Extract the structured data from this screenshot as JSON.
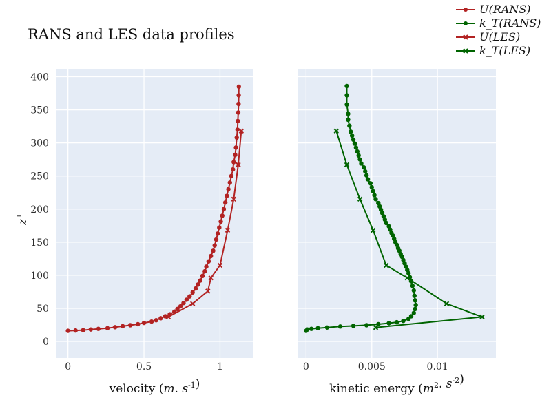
{
  "chart_data": {
    "title": "RANS and LES data profiles",
    "type": "line",
    "legend": {
      "placement": "top-right",
      "entries": [
        "U(RANS)",
        "k_T(RANS)",
        "U(LES)",
        "k_T(LES)"
      ]
    },
    "panels": [
      {
        "name": "velocity",
        "xlabel": "velocity (m.s^-1)",
        "ylabel": "z^+",
        "xlim": [
          -0.08,
          1.22
        ],
        "ylim": [
          -25,
          412
        ],
        "xticks": [
          0,
          0.5,
          1
        ],
        "xtick_labels": [
          "0",
          "0.5",
          "1"
        ],
        "yticks": [
          0,
          50,
          100,
          150,
          200,
          250,
          300,
          350,
          400
        ],
        "ytick_labels": [
          "0",
          "50",
          "100",
          "150",
          "200",
          "250",
          "300",
          "350",
          "400"
        ],
        "grid": true,
        "series": [
          {
            "name": "U(RANS)",
            "color": "#b22222",
            "marker": "circle",
            "x": [
              0.0,
              0.05,
              0.1,
              0.15,
              0.2,
              0.26,
              0.31,
              0.36,
              0.41,
              0.46,
              0.5,
              0.55,
              0.58,
              0.61,
              0.64,
              0.67,
              0.7,
              0.72,
              0.74,
              0.76,
              0.78,
              0.8,
              0.82,
              0.84,
              0.855,
              0.87,
              0.885,
              0.9,
              0.91,
              0.925,
              0.94,
              0.955,
              0.965,
              0.975,
              0.985,
              0.995,
              1.005,
              1.015,
              1.025,
              1.035,
              1.045,
              1.055,
              1.065,
              1.075,
              1.085,
              1.09,
              1.1,
              1.105,
              1.11,
              1.115,
              1.117,
              1.12,
              1.122,
              1.123,
              1.124
            ],
            "y": [
              16,
              16.5,
              17,
              18,
              19,
              20,
              21.5,
              23,
              24.5,
              26,
              28,
              30,
              32,
              35,
              38,
              41,
              45,
              49,
              53,
              58,
              63,
              68,
              74,
              80,
              86,
              92,
              99,
              106,
              113,
              121,
              129,
              137,
              145,
              154,
              163,
              172,
              181,
              190,
              200,
              210,
              220,
              230,
              240,
              250,
              260,
              271,
              282,
              293,
              308,
              320,
              333,
              346,
              359,
              372,
              385
            ]
          },
          {
            "name": "U(LES)",
            "color": "#b22222",
            "marker": "x",
            "x": [
              0.66,
              0.82,
              0.92,
              0.94,
              1.0,
              1.05,
              1.09,
              1.12,
              1.14
            ],
            "y": [
              37,
              57,
              76,
              96,
              115,
              168,
              215,
              267,
              318
            ]
          }
        ]
      },
      {
        "name": "kinetic energy",
        "xlabel": "kinetic energy (m^2.s^-2)",
        "xlim": [
          -0.00065,
          0.01445
        ],
        "ylim": [
          -25,
          412
        ],
        "xticks": [
          0,
          0.005,
          0.01
        ],
        "xtick_labels": [
          "0",
          "0.005",
          "0.01"
        ],
        "yticks": [
          0,
          50,
          100,
          150,
          200,
          250,
          300,
          350,
          400
        ],
        "grid": true,
        "series": [
          {
            "name": "k_T(RANS)",
            "color": "#006400",
            "marker": "circle",
            "x": [
              0.0,
              0.0001,
              0.0004,
              0.0009,
              0.0016,
              0.0026,
              0.0036,
              0.0046,
              0.0055,
              0.0063,
              0.0069,
              0.0074,
              0.0078,
              0.008,
              0.0082,
              0.0083,
              0.00835,
              0.0083,
              0.00825,
              0.0082,
              0.0081,
              0.008,
              0.0079,
              0.0078,
              0.0077,
              0.0076,
              0.0075,
              0.0074,
              0.0073,
              0.0072,
              0.0071,
              0.007,
              0.0069,
              0.0068,
              0.0067,
              0.0066,
              0.0065,
              0.0064,
              0.0063,
              0.0061,
              0.006,
              0.0059,
              0.0058,
              0.0057,
              0.0056,
              0.0055,
              0.0053,
              0.0052,
              0.0051,
              0.005,
              0.0049,
              0.0047,
              0.0046,
              0.0045,
              0.0044,
              0.0042,
              0.0041,
              0.004,
              0.0039,
              0.0038,
              0.0037,
              0.0036,
              0.0035,
              0.0034,
              0.0033,
              0.0032,
              0.0032,
              0.0031,
              0.0031,
              0.0031
            ],
            "y": [
              16,
              18,
              19,
              20,
              21,
              22.5,
              23.5,
              24.5,
              26,
              27.5,
              29,
              31,
              34,
              38,
              43,
              49,
              55,
              62,
              69,
              77,
              84,
              91,
              97,
              103,
              108,
              113,
              118,
              123,
              128,
              132,
              137,
              141,
              146,
              150,
              155,
              160,
              164,
              169,
              174,
              179,
              184,
              189,
              194,
              199,
              204,
              209,
              215,
              221,
              227,
              233,
              239,
              245,
              251,
              257,
              263,
              269,
              275,
              281,
              287,
              293,
              299,
              305,
              311,
              317,
              326,
              335,
              344,
              358,
              372,
              386
            ]
          },
          {
            "name": "k_T(LES)",
            "color": "#006400",
            "marker": "x",
            "x": [
              0.0053,
              0.0134,
              0.0107,
              0.0077,
              0.0061,
              0.0051,
              0.0041,
              0.0031,
              0.0023
            ],
            "y": [
              21,
              37,
              57,
              96,
              115,
              168,
              215,
              267,
              318
            ]
          }
        ]
      }
    ]
  }
}
